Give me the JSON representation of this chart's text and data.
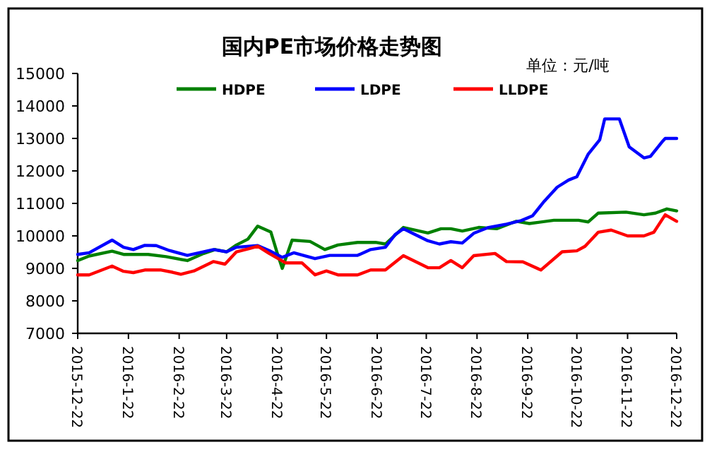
{
  "chart_data": {
    "type": "line",
    "title": "国内PE市场价格走势图",
    "subtitle": "单位：元/吨",
    "legend": "top",
    "marker": "none",
    "line_style": "solid",
    "grid": false,
    "ylim": [
      7000,
      15000
    ],
    "yticks": [
      7000,
      8000,
      9000,
      10000,
      11000,
      12000,
      13000,
      14000,
      15000
    ],
    "xlim": [
      "2015-12-22",
      "2016-12-22"
    ],
    "xticks": [
      {
        "value": "2015-12-22",
        "label": "2015-12-22"
      },
      {
        "value": "2016-01-22",
        "label": "2016-1-22"
      },
      {
        "value": "2016-02-22",
        "label": "2016-2-22"
      },
      {
        "value": "2016-03-22",
        "label": "2016-3-22"
      },
      {
        "value": "2016-04-22",
        "label": "2016-4-22"
      },
      {
        "value": "2016-05-22",
        "label": "2016-5-22"
      },
      {
        "value": "2016-06-22",
        "label": "2016-6-22"
      },
      {
        "value": "2016-07-22",
        "label": "2016-7-22"
      },
      {
        "value": "2016-08-22",
        "label": "2016-8-22"
      },
      {
        "value": "2016-09-22",
        "label": "2016-9-22"
      },
      {
        "value": "2016-10-22",
        "label": "2016-10-22"
      },
      {
        "value": "2016-11-22",
        "label": "2016-11-22"
      },
      {
        "value": "2016-12-22",
        "label": "2016-12-22"
      }
    ],
    "series": [
      {
        "name": "HDPE",
        "color": "#008000",
        "x": [
          "2015-12-22",
          "2015-12-29",
          "2016-01-12",
          "2016-01-19",
          "2016-02-03",
          "2016-02-14",
          "2016-02-27",
          "2016-03-08",
          "2016-03-15",
          "2016-03-22",
          "2016-03-28",
          "2016-04-04",
          "2016-04-10",
          "2016-04-18",
          "2016-04-22",
          "2016-04-25",
          "2016-05-01",
          "2016-05-12",
          "2016-05-21",
          "2016-05-29",
          "2016-06-10",
          "2016-06-21",
          "2016-06-27",
          "2016-07-08",
          "2016-07-23",
          "2016-07-31",
          "2016-08-06",
          "2016-08-13",
          "2016-08-23",
          "2016-09-03",
          "2016-09-15",
          "2016-09-23",
          "2016-10-08",
          "2016-10-23",
          "2016-10-29",
          "2016-11-04",
          "2016-11-21",
          "2016-12-02",
          "2016-12-09",
          "2016-12-16",
          "2016-12-22"
        ],
        "values": [
          9240,
          9380,
          9530,
          9430,
          9430,
          9360,
          9240,
          9460,
          9580,
          9510,
          9720,
          9900,
          10300,
          10120,
          9460,
          9000,
          9870,
          9830,
          9580,
          9720,
          9800,
          9800,
          9750,
          10260,
          10090,
          10220,
          10220,
          10150,
          10260,
          10220,
          10450,
          10380,
          10480,
          10480,
          10430,
          10700,
          10730,
          10650,
          10700,
          10830,
          10770
        ]
      },
      {
        "name": "LDPE",
        "color": "#0000ff",
        "x": [
          "2015-12-22",
          "2015-12-29",
          "2016-01-12",
          "2016-01-19",
          "2016-01-25",
          "2016-02-01",
          "2016-02-08",
          "2016-02-16",
          "2016-02-27",
          "2016-03-14",
          "2016-03-22",
          "2016-03-28",
          "2016-04-10",
          "2016-04-17",
          "2016-04-25",
          "2016-05-02",
          "2016-05-15",
          "2016-05-24",
          "2016-06-10",
          "2016-06-18",
          "2016-06-27",
          "2016-07-03",
          "2016-07-08",
          "2016-07-14",
          "2016-07-23",
          "2016-07-30",
          "2016-08-06",
          "2016-08-13",
          "2016-08-20",
          "2016-08-29",
          "2016-09-09",
          "2016-09-18",
          "2016-09-25",
          "2016-10-02",
          "2016-10-10",
          "2016-10-17",
          "2016-10-22",
          "2016-10-29",
          "2016-11-05",
          "2016-11-08",
          "2016-11-17",
          "2016-11-23",
          "2016-12-02",
          "2016-12-06",
          "2016-12-13",
          "2016-12-15",
          "2016-12-22"
        ],
        "values": [
          9430,
          9480,
          9870,
          9650,
          9580,
          9710,
          9700,
          9550,
          9400,
          9580,
          9510,
          9650,
          9700,
          9550,
          9340,
          9480,
          9300,
          9400,
          9400,
          9580,
          9650,
          10040,
          10220,
          10070,
          9850,
          9750,
          9820,
          9780,
          10080,
          10260,
          10360,
          10470,
          10620,
          11060,
          11500,
          11720,
          11820,
          12520,
          12960,
          13600,
          13600,
          12740,
          12400,
          12450,
          12890,
          13000,
          13000
        ]
      },
      {
        "name": "LLDPE",
        "color": "#ff0000",
        "x": [
          "2015-12-22",
          "2015-12-29",
          "2016-01-12",
          "2016-01-19",
          "2016-01-25",
          "2016-02-01",
          "2016-02-11",
          "2016-02-18",
          "2016-02-23",
          "2016-03-02",
          "2016-03-14",
          "2016-03-21",
          "2016-03-28",
          "2016-04-05",
          "2016-04-10",
          "2016-04-17",
          "2016-04-27",
          "2016-05-07",
          "2016-05-15",
          "2016-05-22",
          "2016-05-29",
          "2016-06-10",
          "2016-06-18",
          "2016-06-27",
          "2016-07-08",
          "2016-07-23",
          "2016-07-30",
          "2016-08-06",
          "2016-08-13",
          "2016-08-20",
          "2016-09-02",
          "2016-09-09",
          "2016-09-19",
          "2016-09-30",
          "2016-10-13",
          "2016-10-22",
          "2016-10-27",
          "2016-11-04",
          "2016-11-12",
          "2016-11-22",
          "2016-12-02",
          "2016-12-08",
          "2016-12-15",
          "2016-12-22"
        ],
        "values": [
          8800,
          8800,
          9070,
          8910,
          8870,
          8950,
          8950,
          8880,
          8820,
          8920,
          9210,
          9130,
          9510,
          9610,
          9680,
          9460,
          9170,
          9170,
          8800,
          8920,
          8800,
          8800,
          8950,
          8950,
          9390,
          9020,
          9020,
          9240,
          9020,
          9390,
          9460,
          9210,
          9200,
          8950,
          9510,
          9540,
          9680,
          10110,
          10180,
          10000,
          10000,
          10110,
          10650,
          10450
        ]
      }
    ]
  }
}
